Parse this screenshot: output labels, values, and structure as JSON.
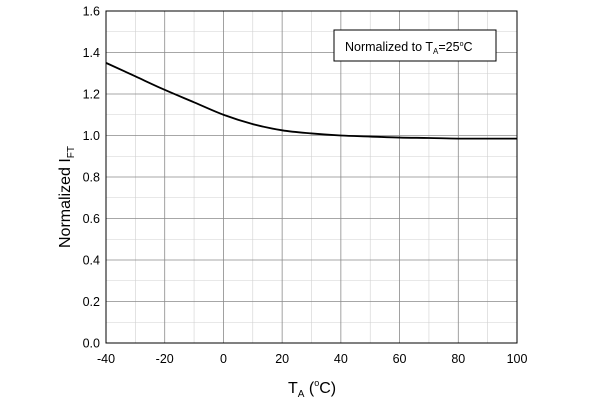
{
  "chart_data": {
    "type": "line",
    "xlabel": "T",
    "xlabel_sub": "A",
    "xlabel_tail_open": " (",
    "xlabel_degree": "o",
    "xlabel_tail_close": "C)",
    "ylabel": "Normalized I",
    "ylabel_sub": "FT",
    "annotation": {
      "text_pre": "Normalized to T",
      "text_sub": "A",
      "text_mid": "=25",
      "text_degree": "o",
      "text_post": "C"
    },
    "xlim": [
      -40,
      100
    ],
    "ylim": [
      0.0,
      1.6
    ],
    "x_ticks": [
      "-40",
      "-20",
      "0",
      "20",
      "40",
      "60",
      "80",
      "100"
    ],
    "y_ticks": [
      "0.0",
      "0.2",
      "0.4",
      "0.6",
      "0.8",
      "1.0",
      "1.2",
      "1.4",
      "1.6"
    ],
    "grid": true,
    "series": [
      {
        "x": [
          -40,
          -30,
          -20,
          -10,
          0,
          10,
          20,
          30,
          40,
          50,
          60,
          70,
          80,
          90,
          100
        ],
        "y": [
          1.35,
          1.285,
          1.22,
          1.16,
          1.1,
          1.055,
          1.025,
          1.01,
          1.0,
          0.995,
          0.99,
          0.988,
          0.985,
          0.985,
          0.985
        ]
      }
    ],
    "colors": {
      "line": "#000000",
      "grid_major": "#8a8a8a",
      "grid_minor": "#d0d0d0"
    }
  }
}
